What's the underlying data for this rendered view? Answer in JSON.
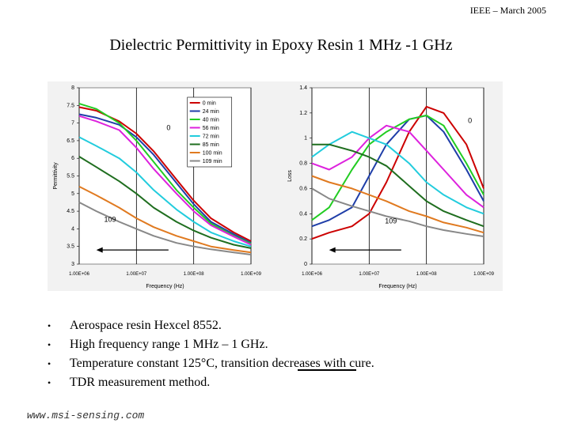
{
  "header": {
    "text": "IEEE – March 2005"
  },
  "title": "Dielectric Permittivity in Epoxy Resin 1 MHz -1 GHz",
  "chart_data": [
    {
      "type": "line",
      "ylabel": "Permittivity",
      "xlabel": "Frequency (Hz)",
      "xscale": "log",
      "xlim": [
        1000000,
        1000000000
      ],
      "ylim": [
        3,
        8
      ],
      "x_ticks": [
        "1.00E+06",
        "1.00E+07",
        "1.00E+08",
        "1.00E+09"
      ],
      "y_ticks": [
        "3",
        "3.5",
        "4",
        "4.5",
        "5",
        "5.5",
        "6",
        "6.5",
        "7",
        "7.5",
        "8"
      ],
      "legend_position": "top-right",
      "annotations": [
        "0",
        "109"
      ],
      "x": [
        1000000,
        2000000,
        5000000,
        10000000,
        20000000,
        50000000,
        100000000,
        200000000,
        500000000,
        1000000000
      ],
      "series": [
        {
          "name": "0 min",
          "color": "#cc0000",
          "values": [
            7.45,
            7.35,
            7.05,
            6.7,
            6.2,
            5.4,
            4.8,
            4.3,
            3.9,
            3.65
          ]
        },
        {
          "name": "24 min",
          "color": "#1f3ea8",
          "values": [
            7.25,
            7.15,
            6.95,
            6.6,
            6.1,
            5.3,
            4.7,
            4.2,
            3.85,
            3.6
          ]
        },
        {
          "name": "40 min",
          "color": "#22cc22",
          "values": [
            7.55,
            7.4,
            7.0,
            6.5,
            5.9,
            5.1,
            4.6,
            4.15,
            3.8,
            3.58
          ]
        },
        {
          "name": "56 min",
          "color": "#dd22dd",
          "values": [
            7.2,
            7.05,
            6.8,
            6.3,
            5.7,
            5.0,
            4.5,
            4.1,
            3.78,
            3.55
          ]
        },
        {
          "name": "72 min",
          "color": "#22ccdd",
          "values": [
            6.6,
            6.35,
            6.0,
            5.6,
            5.1,
            4.55,
            4.2,
            3.9,
            3.65,
            3.5
          ]
        },
        {
          "name": "85 min",
          "color": "#1f6e1f",
          "values": [
            6.05,
            5.75,
            5.35,
            5.0,
            4.6,
            4.2,
            3.95,
            3.75,
            3.55,
            3.45
          ]
        },
        {
          "name": "100 min",
          "color": "#e07a20",
          "values": [
            5.2,
            4.95,
            4.6,
            4.3,
            4.05,
            3.8,
            3.65,
            3.5,
            3.4,
            3.33
          ]
        },
        {
          "name": "109 min",
          "color": "#888888",
          "values": [
            4.75,
            4.5,
            4.2,
            4.0,
            3.8,
            3.6,
            3.5,
            3.42,
            3.33,
            3.27
          ]
        }
      ]
    },
    {
      "type": "line",
      "ylabel": "Loss",
      "xlabel": "Frequency (Hz)",
      "xscale": "log",
      "xlim": [
        1000000,
        1000000000
      ],
      "ylim": [
        0,
        1.4
      ],
      "x_ticks": [
        "1.00E+06",
        "1.00E+07",
        "1.00E+08",
        "1.00E+09"
      ],
      "y_ticks": [
        "0",
        "0.2",
        "0.4",
        "0.6",
        "0.8",
        "1",
        "1.2",
        "1.4"
      ],
      "annotations": [
        "0",
        "109"
      ],
      "x": [
        1000000,
        2000000,
        5000000,
        10000000,
        20000000,
        50000000,
        100000000,
        200000000,
        500000000,
        1000000000
      ],
      "series": [
        {
          "name": "0 min",
          "values": [
            0.2,
            0.25,
            0.3,
            0.4,
            0.65,
            1.05,
            1.25,
            1.2,
            0.95,
            0.6
          ]
        },
        {
          "name": "24 min",
          "values": [
            0.3,
            0.35,
            0.45,
            0.7,
            0.95,
            1.15,
            1.18,
            1.05,
            0.75,
            0.5
          ]
        },
        {
          "name": "40 min",
          "values": [
            0.35,
            0.45,
            0.75,
            0.95,
            1.05,
            1.15,
            1.18,
            1.1,
            0.8,
            0.55
          ]
        },
        {
          "name": "56 min",
          "values": [
            0.8,
            0.75,
            0.85,
            1.0,
            1.1,
            1.05,
            0.9,
            0.75,
            0.55,
            0.45
          ]
        },
        {
          "name": "72 min",
          "values": [
            0.85,
            0.95,
            1.05,
            1.0,
            0.95,
            0.8,
            0.65,
            0.55,
            0.45,
            0.4
          ]
        },
        {
          "name": "85 min",
          "values": [
            0.95,
            0.95,
            0.9,
            0.85,
            0.78,
            0.62,
            0.5,
            0.42,
            0.35,
            0.3
          ]
        },
        {
          "name": "100 min",
          "values": [
            0.7,
            0.65,
            0.6,
            0.55,
            0.5,
            0.42,
            0.38,
            0.33,
            0.29,
            0.25
          ]
        },
        {
          "name": "109 min",
          "values": [
            0.6,
            0.52,
            0.46,
            0.42,
            0.38,
            0.34,
            0.3,
            0.27,
            0.24,
            0.22
          ]
        }
      ]
    }
  ],
  "bullets": [
    {
      "marker": "•",
      "text": "Aerospace resin Hexcel 8552."
    },
    {
      "marker": "•",
      "text": "High frequency range 1 MHz – 1 GHz."
    },
    {
      "marker": "•",
      "text": "Temperature constant 125°C, transition decreases with cure."
    },
    {
      "marker": "•",
      "text": "TDR measurement method."
    }
  ],
  "footer": {
    "text": "www.msi-sensing.com"
  }
}
